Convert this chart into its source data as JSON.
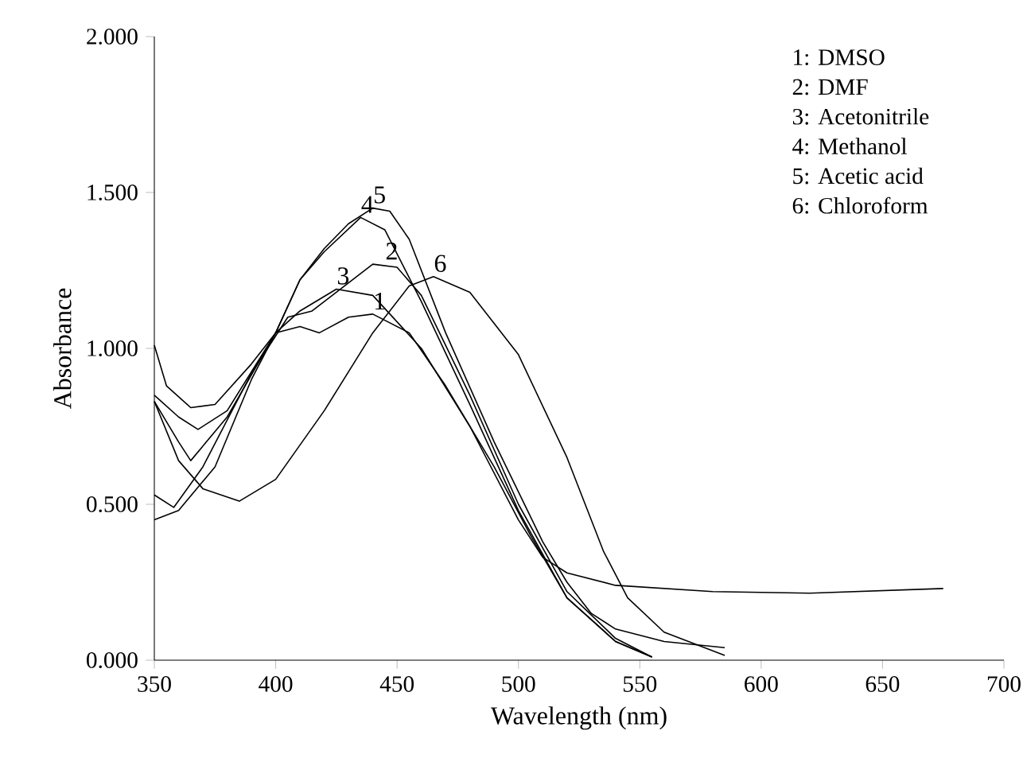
{
  "chart_data": {
    "type": "line",
    "xlabel": "Wavelength (nm)",
    "ylabel": "Absorbance",
    "xlim": [
      350,
      700
    ],
    "xticks": [
      350,
      400,
      450,
      500,
      550,
      600,
      650,
      700
    ],
    "ylim": [
      0,
      2
    ],
    "yticks": [
      {
        "value": 0,
        "label": "0.000"
      },
      {
        "value": 0.5,
        "label": "0.500"
      },
      {
        "value": 1,
        "label": "1.000"
      },
      {
        "value": 1.5,
        "label": "1.500"
      },
      {
        "value": 2,
        "label": "2.000"
      }
    ],
    "marker": "none",
    "line_style": "solid",
    "series": [
      {
        "color": "#000000",
        "x": [
          350,
          355,
          365,
          375,
          390,
          400,
          410,
          418,
          430,
          440,
          455,
          470,
          490,
          505,
          520,
          540,
          555
        ],
        "values": [
          1.01,
          0.88,
          0.81,
          0.82,
          0.95,
          1.05,
          1.07,
          1.05,
          1.1,
          1.11,
          1.05,
          0.88,
          0.62,
          0.4,
          0.2,
          0.06,
          0.01
        ]
      },
      {
        "color": "#000000",
        "x": [
          350,
          358,
          370,
          390,
          405,
          415,
          425,
          440,
          450,
          460,
          480,
          500,
          520,
          540,
          555
        ],
        "values": [
          0.53,
          0.49,
          0.62,
          0.92,
          1.1,
          1.12,
          1.18,
          1.27,
          1.26,
          1.17,
          0.85,
          0.5,
          0.22,
          0.07,
          0.01
        ]
      },
      {
        "color": "#000000",
        "x": [
          350,
          360,
          375,
          390,
          400,
          410,
          425,
          440,
          460,
          480,
          500,
          510,
          520,
          540,
          580,
          620,
          675
        ],
        "values": [
          0.45,
          0.48,
          0.62,
          0.9,
          1.05,
          1.12,
          1.19,
          1.17,
          1.0,
          0.75,
          0.45,
          0.33,
          0.28,
          0.24,
          0.22,
          0.215,
          0.23
        ]
      },
      {
        "color": "#000000",
        "x": [
          350,
          360,
          368,
          380,
          400,
          410,
          420,
          435,
          445,
          460,
          480,
          500,
          520,
          540,
          555
        ],
        "values": [
          0.85,
          0.78,
          0.74,
          0.8,
          1.05,
          1.22,
          1.31,
          1.42,
          1.38,
          1.15,
          0.82,
          0.48,
          0.2,
          0.06,
          0.01
        ]
      },
      {
        "color": "#000000",
        "x": [
          350,
          360,
          365,
          380,
          400,
          410,
          420,
          430,
          440,
          447,
          455,
          470,
          490,
          510,
          520,
          530,
          540,
          560,
          585
        ],
        "values": [
          0.83,
          0.7,
          0.64,
          0.78,
          1.05,
          1.22,
          1.32,
          1.4,
          1.45,
          1.44,
          1.35,
          1.05,
          0.7,
          0.38,
          0.25,
          0.15,
          0.1,
          0.06,
          0.04
        ]
      },
      {
        "color": "#000000",
        "x": [
          350,
          360,
          370,
          385,
          400,
          420,
          440,
          455,
          465,
          480,
          500,
          520,
          535,
          545,
          560,
          585
        ],
        "values": [
          0.83,
          0.64,
          0.55,
          0.51,
          0.58,
          0.8,
          1.05,
          1.2,
          1.23,
          1.18,
          0.98,
          0.65,
          0.35,
          0.2,
          0.09,
          0.015
        ]
      }
    ],
    "annotations": [
      {
        "text": "1",
        "x": 440,
        "y": 1.11
      },
      {
        "text": "2",
        "x": 445,
        "y": 1.27
      },
      {
        "text": "3",
        "x": 425,
        "y": 1.19
      },
      {
        "text": "4",
        "x": 435,
        "y": 1.42
      },
      {
        "text": "5",
        "x": 440,
        "y": 1.45
      },
      {
        "text": "6",
        "x": 465,
        "y": 1.23
      },
      "1: DMSO",
      "2: DMF",
      "3: Acetonitrile",
      "4: Methanol",
      "5: Acetic acid",
      "6: Chloroform"
    ]
  }
}
